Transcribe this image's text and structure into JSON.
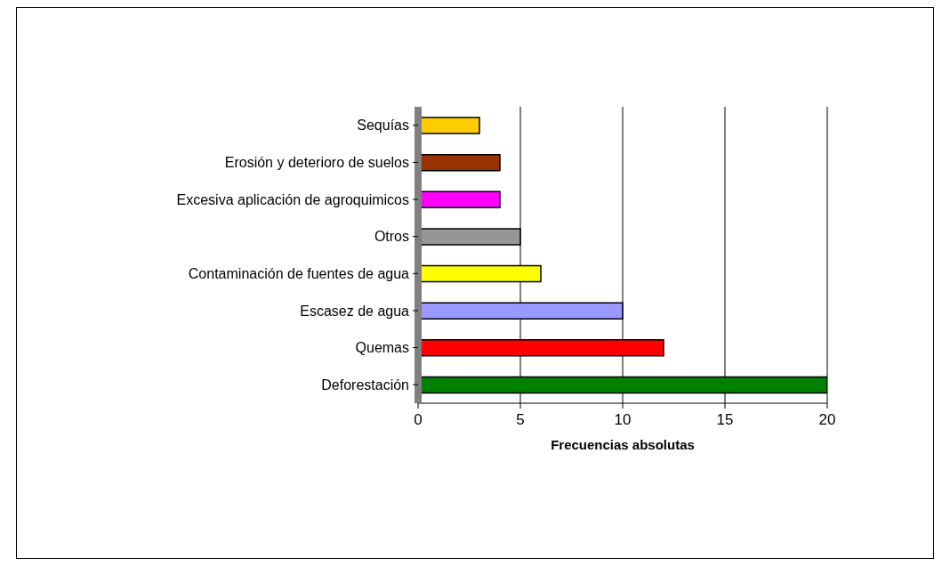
{
  "chart_data": {
    "type": "bar",
    "orientation": "horizontal",
    "xlabel": "Frecuencias absolutas",
    "categories": [
      "Sequías",
      "Erosión y deterioro de suelos",
      "Excesiva aplicación de agroquimicos",
      "Otros",
      "Contaminación de fuentes de agua",
      "Escasez de agua",
      "Quemas",
      "Deforestación"
    ],
    "values": [
      3,
      4,
      4,
      5,
      6,
      10,
      12,
      20
    ],
    "colors": [
      "#ffcc00",
      "#993300",
      "#ff00ff",
      "#969696",
      "#ffff00",
      "#9999ff",
      "#ff0000",
      "#008000"
    ],
    "xlim": [
      0,
      20
    ],
    "xticks": [
      0,
      5,
      10,
      15,
      20
    ],
    "grid": "x",
    "legend": false
  }
}
